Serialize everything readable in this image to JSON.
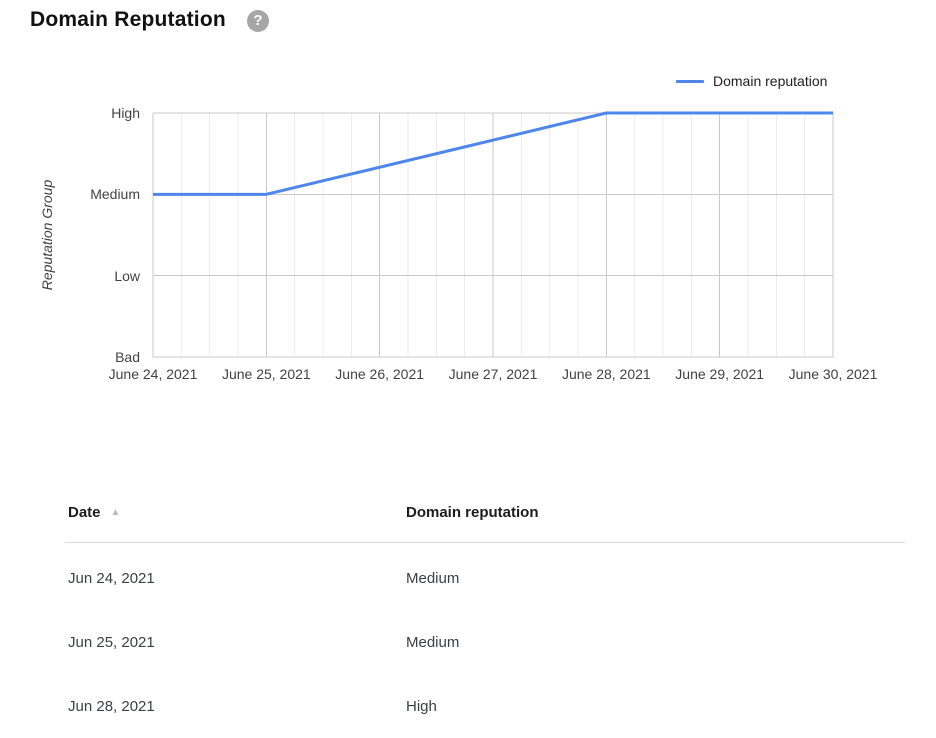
{
  "header": {
    "title": "Domain Reputation"
  },
  "icons": {
    "help": "?",
    "sort_ascending": "▲"
  },
  "colors": {
    "line": "#4e86ec",
    "grid_major": "#c9c9c9",
    "grid_minor": "#ececec",
    "axis_text": "#424242",
    "help_icon_bg": "#a6a6a6"
  },
  "chart_data": {
    "type": "line",
    "title": "Domain Reputation",
    "xlabel": "",
    "ylabel": "Reputation Group",
    "y_categories": [
      "Bad",
      "Low",
      "Medium",
      "High"
    ],
    "x_ticks": [
      "June 24, 2021",
      "June 25, 2021",
      "June 26, 2021",
      "June 27, 2021",
      "June 28, 2021",
      "June 29, 2021",
      "June 30, 2021"
    ],
    "legend": {
      "position": "top-right",
      "label": "Domain reputation",
      "color": "#4e86ec"
    },
    "grid": {
      "minor_per_interval": 3,
      "grid_on": true
    },
    "series": [
      {
        "name": "Domain reputation",
        "color": "#4e86ec",
        "points": [
          {
            "date": "June 24, 2021",
            "value": "Medium",
            "x_index": 0,
            "y_index": 2
          },
          {
            "date": "June 25, 2021",
            "value": "Medium",
            "x_index": 1,
            "y_index": 2
          },
          {
            "date": "June 28, 2021",
            "value": "High",
            "x_index": 4,
            "y_index": 3
          },
          {
            "date": "June 29, 2021",
            "value": "High",
            "x_index": 5,
            "y_index": 3
          },
          {
            "date": "June 30, 2021",
            "value": "High",
            "x_index": 6,
            "y_index": 3
          }
        ]
      }
    ]
  },
  "table": {
    "columns": [
      {
        "label": "Date",
        "sortable": true,
        "sort": "ascending"
      },
      {
        "label": "Domain reputation"
      }
    ],
    "rows": [
      {
        "date": "Jun 24, 2021",
        "reputation": "Medium"
      },
      {
        "date": "Jun 25, 2021",
        "reputation": "Medium"
      },
      {
        "date": "Jun 28, 2021",
        "reputation": "High"
      }
    ]
  }
}
